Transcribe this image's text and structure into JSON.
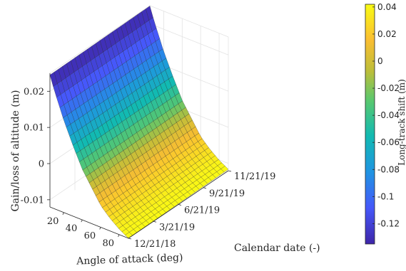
{
  "chart_data": {
    "type": "surface",
    "x": {
      "label": "Angle of attack (deg)",
      "ticks": [
        20,
        40,
        60,
        80
      ],
      "range": [
        5,
        90
      ]
    },
    "y": {
      "label": "Calendar date (-)",
      "ticks": [
        "12/21/18",
        "3/21/19",
        "6/21/19",
        "9/21/19",
        "11/21/19"
      ],
      "range": [
        "12/21/18",
        "11/21/19"
      ]
    },
    "z": {
      "label": "Gain/loss of altitude (m)",
      "ticks": [
        -0.01,
        0,
        0.01,
        0.02
      ],
      "range": [
        -0.012,
        0.025
      ]
    },
    "colorbar": {
      "label": "Long-track shift (m)",
      "ticks": [
        0.04,
        0.02,
        0,
        -0.02,
        -0.04,
        -0.06,
        -0.08,
        -0.1,
        -0.12
      ],
      "range": [
        -0.135,
        0.042
      ],
      "colormap": "parula",
      "placement": "right"
    },
    "surface": {
      "angle_of_attack_deg": [
        5,
        10,
        20,
        30,
        40,
        50,
        60,
        70,
        80,
        90
      ],
      "altitude_gain_loss_m": [
        0.0245,
        0.0205,
        0.0135,
        0.0075,
        0.002,
        -0.002,
        -0.006,
        -0.0085,
        -0.0105,
        -0.012
      ],
      "long_track_shift_m": [
        -0.135,
        -0.12,
        -0.09,
        -0.06,
        -0.03,
        0.0,
        0.02,
        0.03,
        0.038,
        0.042
      ],
      "near_constant_along_date": true
    },
    "grid": true
  }
}
